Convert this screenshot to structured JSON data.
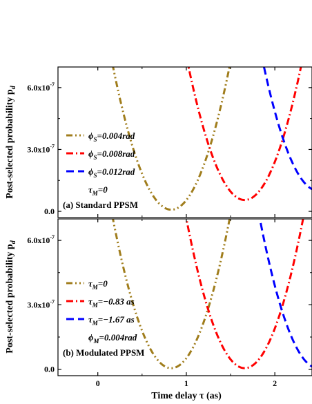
{
  "figure": {
    "xlabel": "Time delay τ (as)",
    "ylabel": "Post-selected probability p",
    "ylabel_subscript": "d"
  },
  "chart_data": [
    {
      "type": "line",
      "panel_label": "(a) Standard PPSM",
      "xlim": [
        -0.45,
        2.42
      ],
      "ylim": [
        -3e-08,
        7e-07
      ],
      "x_ticks": [
        0,
        1,
        2
      ],
      "y_ticks": [
        {
          "value": 0.0,
          "label": "0.0"
        },
        {
          "value": 3e-07,
          "label": "3.0x10",
          "exp": "-7"
        },
        {
          "value": 6e-07,
          "label": "6.0x10",
          "exp": "-7"
        }
      ],
      "legend": {
        "placement": "left",
        "extra_line": "τ",
        "extra_line_sub": "M",
        "extra_line_tail": "=0"
      },
      "series": [
        {
          "name": "ϕ",
          "name_sub": "S",
          "name_tail": "=0.004rad",
          "color": "#a07d1c",
          "dash": "dash-dot-dot",
          "center": 0.83,
          "coef": 1.6e-06,
          "offset": 8e-09
        },
        {
          "name": "ϕ",
          "name_sub": "S",
          "name_tail": "=0.008rad",
          "color": "#ff0000",
          "dash": "dash-dot",
          "center": 1.66,
          "coef": 1.6e-06,
          "offset": 5.5e-08
        },
        {
          "name": "ϕ",
          "name_sub": "S",
          "name_tail": "=0.012rad",
          "color": "#0000ff",
          "dash": "dash",
          "center": 2.49,
          "coef": 1.6e-06,
          "offset": 1e-07
        }
      ]
    },
    {
      "type": "line",
      "panel_label": "(b) Modulated PPSM",
      "xlim": [
        -0.45,
        2.42
      ],
      "ylim": [
        -3e-08,
        7e-07
      ],
      "x_ticks": [
        0,
        1,
        2
      ],
      "y_ticks": [
        {
          "value": 0.0,
          "label": "0.0"
        },
        {
          "value": 3e-07,
          "label": "3.0x10",
          "exp": "-7"
        },
        {
          "value": 6e-07,
          "label": "6.0x10",
          "exp": "-7"
        }
      ],
      "legend": {
        "placement": "left",
        "extra_line": "ϕ",
        "extra_line_sub": "M",
        "extra_line_tail": "=0.004rad"
      },
      "series": [
        {
          "name": "τ",
          "name_sub": "M",
          "name_tail": "=0",
          "color": "#a07d1c",
          "dash": "dash-dot-dot",
          "center": 0.83,
          "coef": 1.6e-06,
          "offset": 5e-09
        },
        {
          "name": "τ",
          "name_sub": "M",
          "name_tail": "=−0.83 as",
          "color": "#ff0000",
          "dash": "dash-dot",
          "center": 1.66,
          "coef": 1.6e-06,
          "offset": 5e-09
        },
        {
          "name": "τ",
          "name_sub": "M",
          "name_tail": "=−1.67 as",
          "color": "#0000ff",
          "dash": "dash",
          "center": 2.49,
          "coef": 1.6e-06,
          "offset": 5e-09
        }
      ]
    }
  ]
}
